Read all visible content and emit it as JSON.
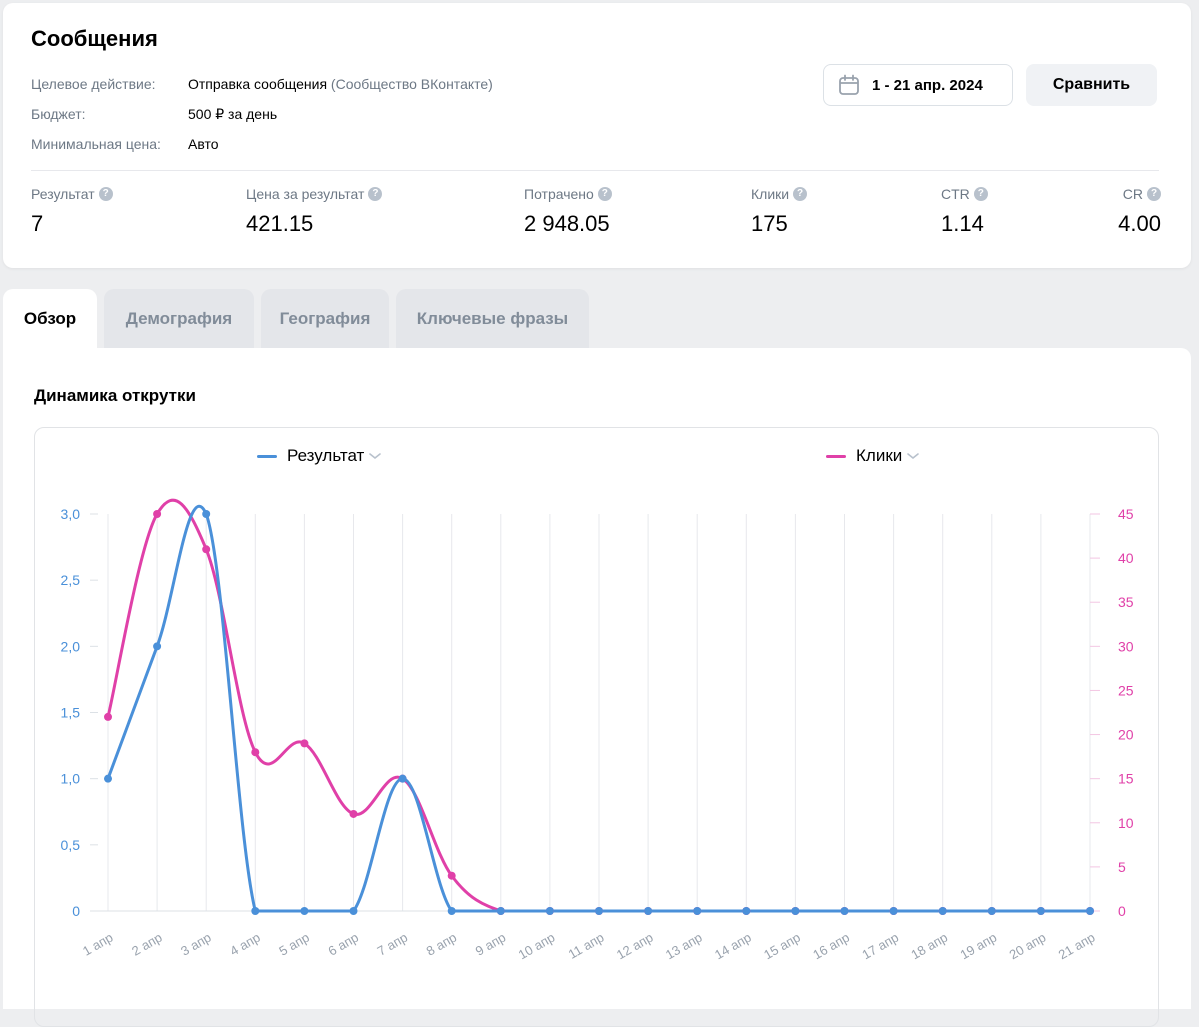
{
  "header": {
    "title": "Сообщения",
    "target_action_label": "Целевое действие:",
    "target_action_value": "Отправка сообщения",
    "target_action_source": "(Сообщество ВКонтакте)",
    "budget_label": "Бюджет:",
    "budget_value": "500 ₽ за день",
    "min_price_label": "Минимальная цена:",
    "min_price_value": "Авто",
    "date_range": "1 - 21 апр. 2024",
    "compare_label": "Сравнить"
  },
  "metrics": [
    {
      "label": "Результат",
      "value": "7"
    },
    {
      "label": "Цена за результат",
      "value": "421.15"
    },
    {
      "label": "Потрачено",
      "value": "2 948.05"
    },
    {
      "label": "Клики",
      "value": "175"
    },
    {
      "label": "CTR",
      "value": "1.14"
    },
    {
      "label": "CR",
      "value": "4.00"
    }
  ],
  "help_glyph": "?",
  "tabs": [
    {
      "label": "Обзор",
      "active": true
    },
    {
      "label": "Демография",
      "active": false
    },
    {
      "label": "География",
      "active": false
    },
    {
      "label": "Ключевые фразы",
      "active": false
    }
  ],
  "section_title": "Динамика открутки",
  "colors": {
    "result": "#4a90d9",
    "clicks": "#e040a8",
    "left_axis": "#4a90d9",
    "right_axis": "#e040a8"
  },
  "chart_data": {
    "type": "line",
    "x": [
      "1 апр",
      "2 апр",
      "3 апр",
      "4 апр",
      "5 апр",
      "6 апр",
      "7 апр",
      "8 апр",
      "9 апр",
      "10 апр",
      "11 апр",
      "12 апр",
      "13 апр",
      "14 апр",
      "15 апр",
      "16 апр",
      "17 апр",
      "18 апр",
      "19 апр",
      "20 апр",
      "21 апр"
    ],
    "series": [
      {
        "name": "Результат",
        "axis": "left",
        "values": [
          1,
          2,
          3,
          0,
          0,
          0,
          1,
          0,
          0,
          0,
          0,
          0,
          0,
          0,
          0,
          0,
          0,
          0,
          0,
          0,
          0
        ]
      },
      {
        "name": "Клики",
        "axis": "right",
        "values": [
          22,
          45,
          41,
          18,
          19,
          11,
          15,
          4,
          0,
          0,
          0,
          0,
          0,
          0,
          0,
          0,
          0,
          0,
          0,
          0,
          0
        ]
      }
    ],
    "y_left": {
      "ticks": [
        "0",
        "0,5",
        "1,0",
        "1,5",
        "2,0",
        "2,5",
        "3,0"
      ],
      "range": [
        0,
        3
      ]
    },
    "y_right": {
      "ticks": [
        "0",
        "5",
        "10",
        "15",
        "20",
        "25",
        "30",
        "35",
        "40",
        "45"
      ],
      "range": [
        0,
        45
      ]
    },
    "grid": "vertical",
    "legend": "top"
  }
}
